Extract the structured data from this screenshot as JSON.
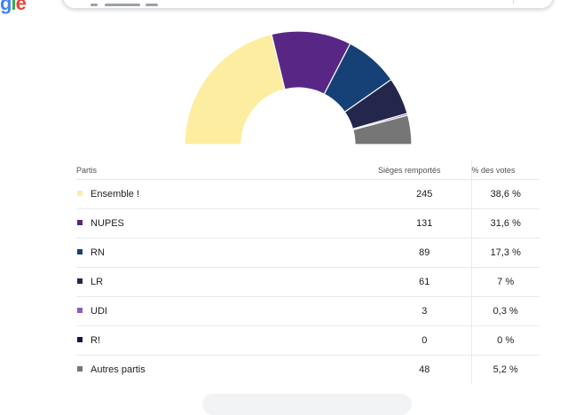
{
  "colors": {
    "accent_border": "#e8eaed"
  },
  "table": {
    "headers": {
      "party": "Partis",
      "seats": "Sièges remportés",
      "votes": "% des votes"
    },
    "rows": [
      {
        "party": "Ensemble !",
        "seats": "245",
        "votes": "38,6 %",
        "color": "#fdeda0"
      },
      {
        "party": "NUPES",
        "seats": "131",
        "votes": "31,6 %",
        "color": "#582786"
      },
      {
        "party": "RN",
        "seats": "89",
        "votes": "17,3 %",
        "color": "#154176"
      },
      {
        "party": "LR",
        "seats": "61",
        "votes": "7 %",
        "color": "#23274c"
      },
      {
        "party": "UDI",
        "seats": "3",
        "votes": "0,3 %",
        "color": "#8d5bc1"
      },
      {
        "party": "R!",
        "seats": "0",
        "votes": "0 %",
        "color": "#15134a"
      },
      {
        "party": "Autres partis",
        "seats": "48",
        "votes": "5,2 %",
        "color": "#767676"
      }
    ]
  },
  "chart_data": {
    "type": "pie",
    "subtype": "half-donut",
    "categories": [
      "Ensemble !",
      "NUPES",
      "RN",
      "LR",
      "UDI",
      "R!",
      "Autres partis"
    ],
    "values": [
      245,
      131,
      89,
      61,
      3,
      0,
      48
    ],
    "colors": [
      "#fdeda0",
      "#582786",
      "#154176",
      "#23274c",
      "#8d5bc1",
      "#15134a",
      "#767676"
    ],
    "title": ""
  }
}
